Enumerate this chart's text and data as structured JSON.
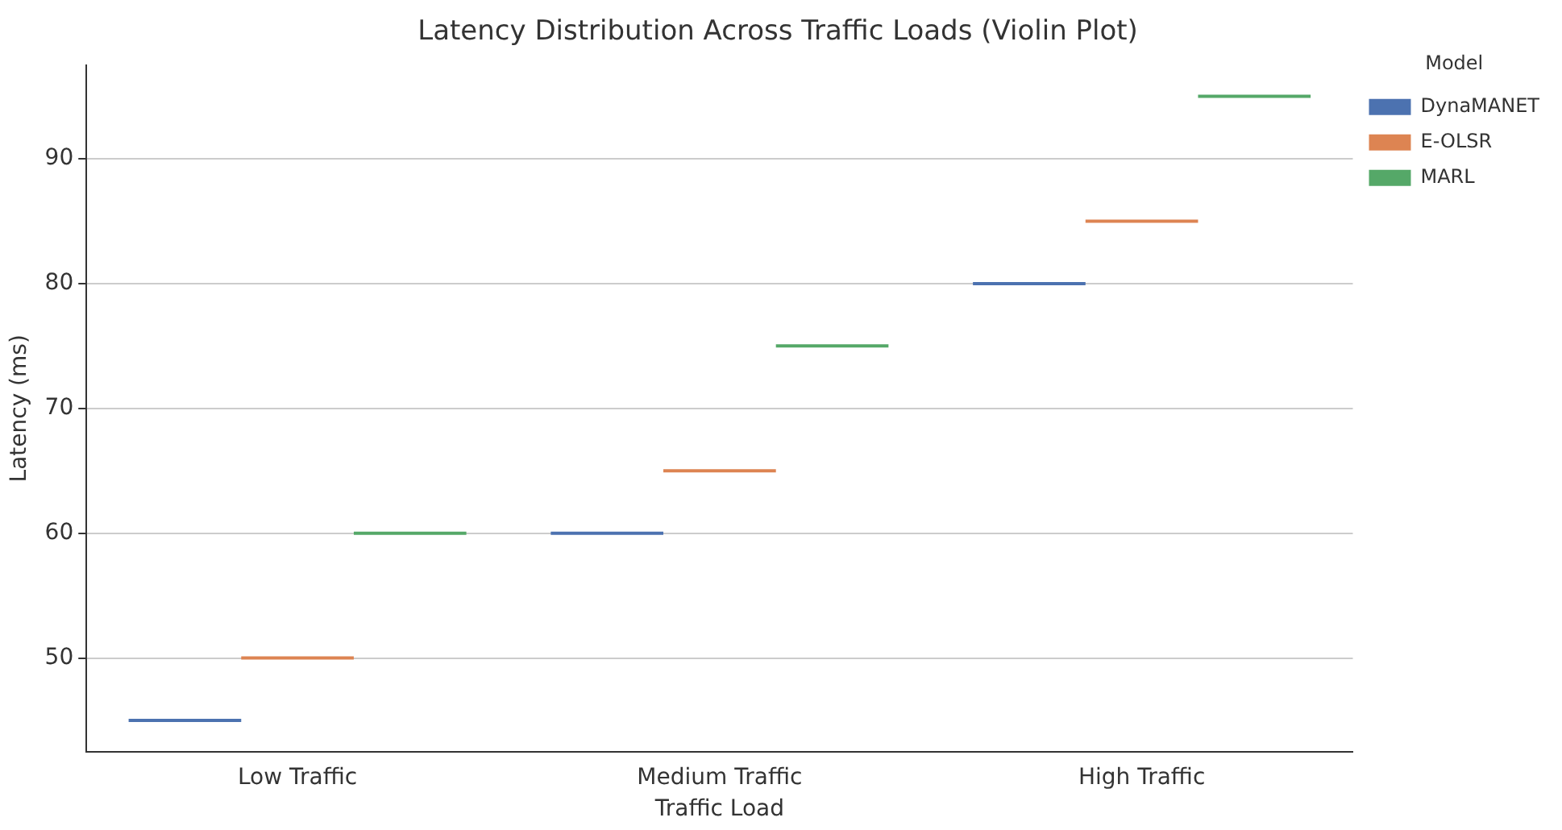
{
  "chart_data": {
    "type": "box",
    "title": "Latency Distribution Across Traffic Loads (Violin Plot)",
    "xlabel": "Traffic Load",
    "ylabel": "Latency (ms)",
    "legend_title": "Model",
    "categories": [
      "Low Traffic",
      "Medium Traffic",
      "High Traffic"
    ],
    "series": [
      {
        "name": "DynaMANET",
        "color": "#4c72b0",
        "boxes": [
          {
            "low": 45,
            "q1": 45,
            "median": 45,
            "q3": 45,
            "high": 45
          },
          {
            "low": 60,
            "q1": 60,
            "median": 60,
            "q3": 60,
            "high": 60
          },
          {
            "low": 80,
            "q1": 80,
            "median": 80,
            "q3": 80,
            "high": 80
          }
        ]
      },
      {
        "name": "E-OLSR",
        "color": "#dd8452",
        "boxes": [
          {
            "low": 50,
            "q1": 50,
            "median": 50,
            "q3": 50,
            "high": 50
          },
          {
            "low": 65,
            "q1": 65,
            "median": 65,
            "q3": 65,
            "high": 65
          },
          {
            "low": 85,
            "q1": 85,
            "median": 85,
            "q3": 85,
            "high": 85
          }
        ]
      },
      {
        "name": "MARL",
        "color": "#55a868",
        "boxes": [
          {
            "low": 60,
            "q1": 60,
            "median": 60,
            "q3": 60,
            "high": 60
          },
          {
            "low": 75,
            "q1": 75,
            "median": 75,
            "q3": 75,
            "high": 75
          },
          {
            "low": 95,
            "q1": 95,
            "median": 95,
            "q3": 95,
            "high": 95
          }
        ]
      }
    ],
    "ylim": [
      42.5,
      97.5
    ],
    "yticks": [
      50,
      60,
      70,
      80,
      90
    ],
    "grid": "y",
    "legend": "top right"
  }
}
